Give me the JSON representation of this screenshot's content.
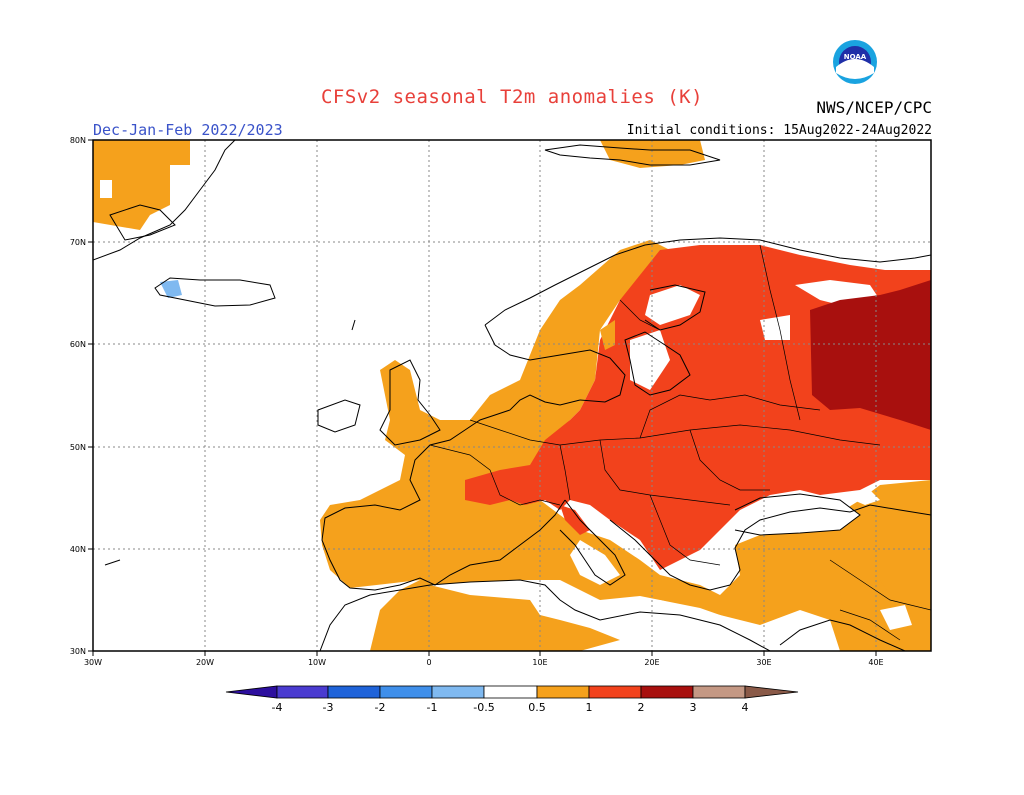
{
  "header": {
    "title": "CFSv2 seasonal T2m anomalies (K)",
    "season": "Dec-Jan-Feb 2022/2023",
    "initial_conditions": "Initial conditions: 15Aug2022-24Aug2022",
    "agency": "NWS/NCEP/CPC",
    "logo_text": "NOAA"
  },
  "map": {
    "projection": "cylindrical",
    "lon_range": [
      -30,
      45
    ],
    "lat_range": [
      30,
      80
    ],
    "lon_ticks": [
      "30W",
      "20W",
      "10W",
      "0",
      "10E",
      "20E",
      "30E",
      "40E"
    ],
    "lat_ticks": [
      "80N",
      "70N",
      "60N",
      "50N",
      "40N",
      "30N"
    ],
    "grid": true
  },
  "legend": {
    "colors": [
      "#2d0f9e",
      "#4a3bd0",
      "#1f63d9",
      "#3f8fea",
      "#7fb9f0",
      "#ffffff",
      "#f5a11c",
      "#f2421c",
      "#a8100e",
      "#c49884",
      "#8a5a48"
    ],
    "labels": [
      "-4",
      "-3",
      "-2",
      "-1",
      "-0.5",
      "0.5",
      "1",
      "2",
      "3",
      "4"
    ]
  },
  "palette": {
    "weak_warm": "#f5a11c",
    "warm": "#f2421c",
    "strong_warm": "#a8100e",
    "cool": "#7fb9f0"
  }
}
